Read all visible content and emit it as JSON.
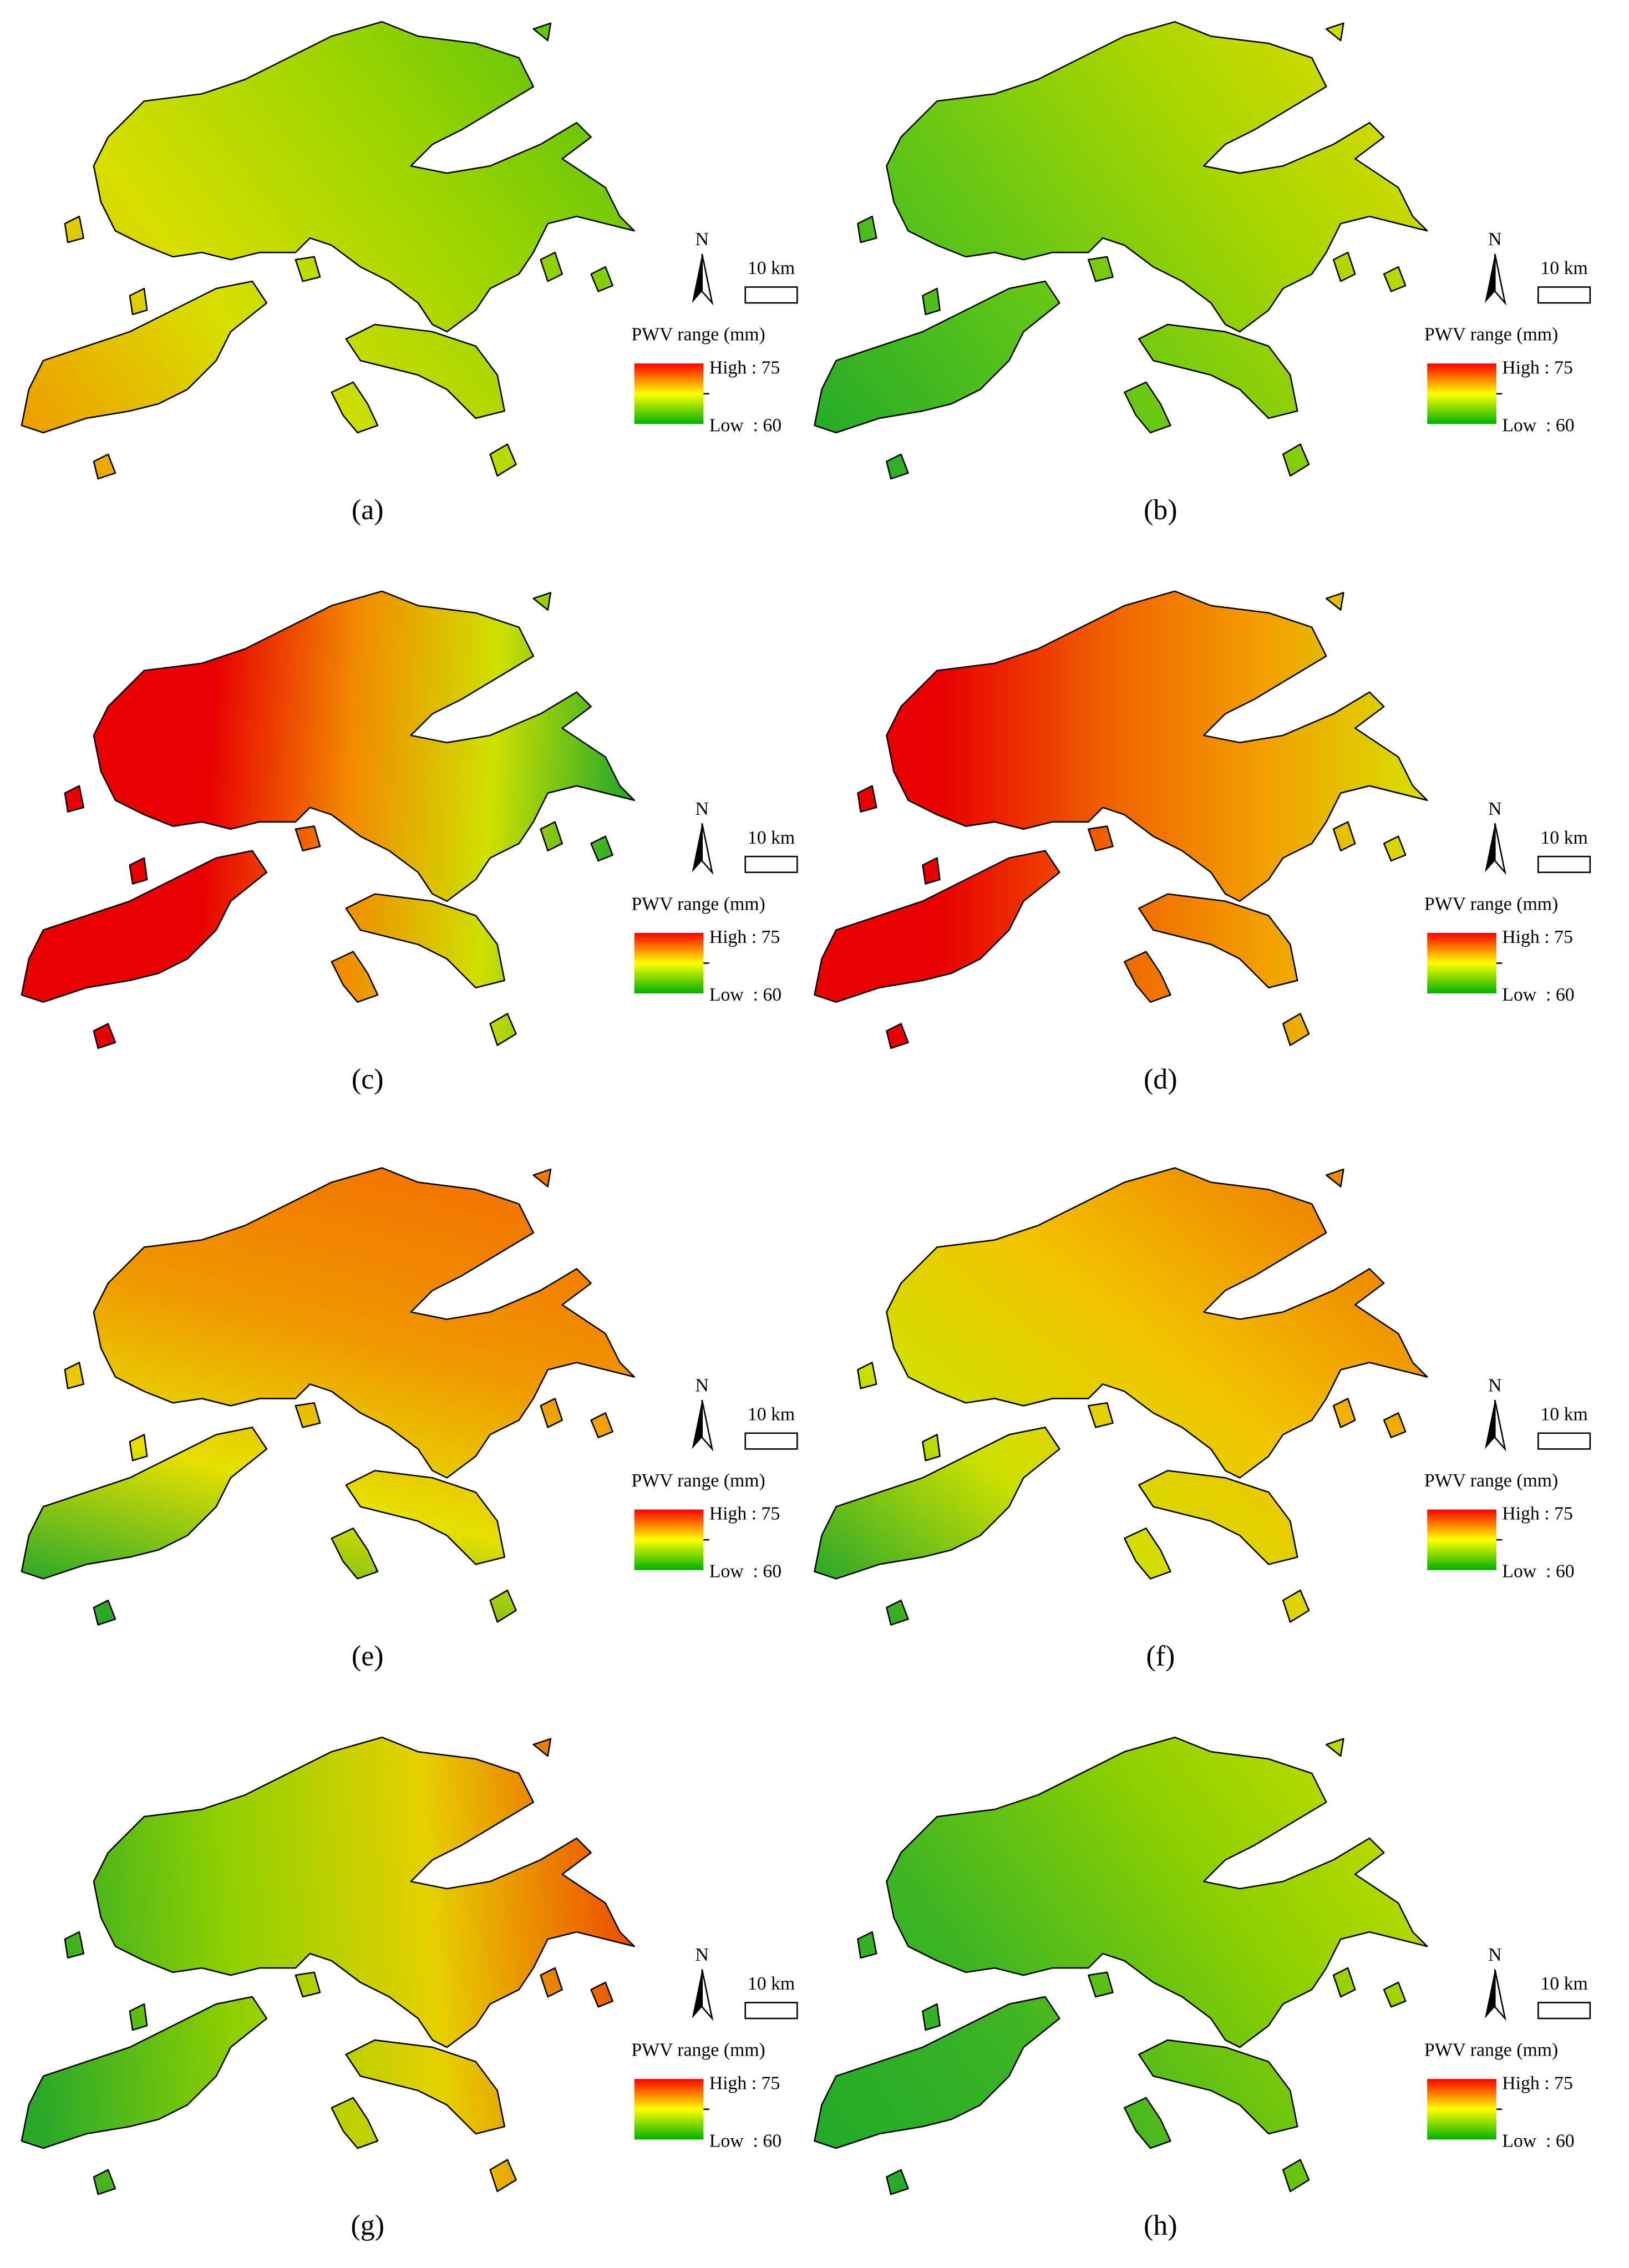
{
  "panels": [
    {
      "label": "(a)",
      "north": "N",
      "scale": "10 km",
      "legend_title": "PWV range (mm)",
      "legend_high": "High : 75",
      "legend_low": "Low  : 60"
    },
    {
      "label": "(b)",
      "north": "N",
      "scale": "10 km",
      "legend_title": "PWV range (mm)",
      "legend_high": "High : 75",
      "legend_low": "Low  : 60"
    },
    {
      "label": "(c)",
      "north": "N",
      "scale": "10 km",
      "legend_title": "PWV range (mm)",
      "legend_high": "High : 75",
      "legend_low": "Low  : 60"
    },
    {
      "label": "(d)",
      "north": "N",
      "scale": "10 km",
      "legend_title": "PWV range (mm)",
      "legend_high": "High : 75",
      "legend_low": "Low  : 60"
    },
    {
      "label": "(e)",
      "north": "N",
      "scale": "10 km",
      "legend_title": "PWV range (mm)",
      "legend_high": "High : 75",
      "legend_low": "Low  : 60"
    },
    {
      "label": "(f)",
      "north": "N",
      "scale": "10 km",
      "legend_title": "PWV range (mm)",
      "legend_high": "High : 75",
      "legend_low": "Low  : 60"
    },
    {
      "label": "(g)",
      "north": "N",
      "scale": "10 km",
      "legend_title": "PWV range (mm)",
      "legend_high": "High : 75",
      "legend_low": "Low  : 60"
    },
    {
      "label": "(h)",
      "north": "N",
      "scale": "10 km",
      "legend_title": "PWV range (mm)",
      "legend_high": "High : 75",
      "legend_low": "Low  : 60"
    }
  ]
}
